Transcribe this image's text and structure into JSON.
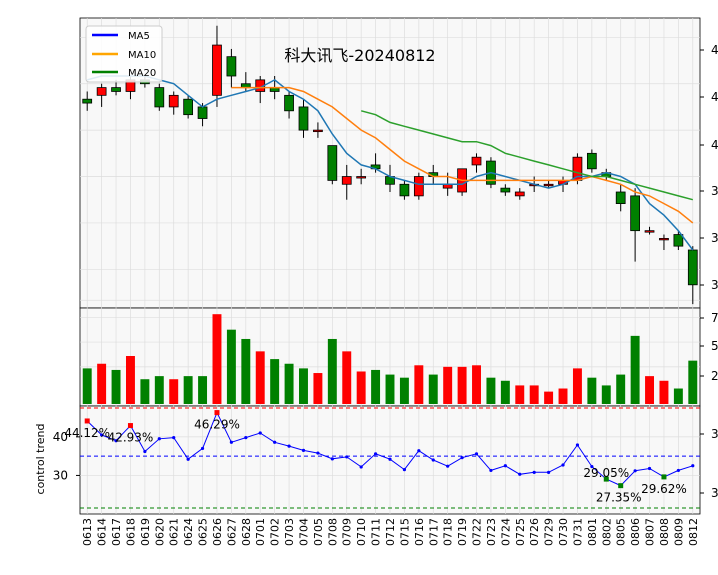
{
  "chart_data": [
    {
      "type": "candlestick",
      "title": "科大讯飞-20240812",
      "legend": {
        "placement": "top-left",
        "entries": [
          "MA5",
          "MA10",
          "MA20"
        ]
      },
      "series_colors": {
        "MA5": "#1f77b4",
        "MA10": "#ff7f0e",
        "MA20": "#2ca02c"
      },
      "legend_colors": {
        "MA5": "#0000ff",
        "MA10": "#ffa500",
        "MA20": "#008000"
      },
      "candle_colors": {
        "up": "#ff0000",
        "down": "#008000"
      },
      "dates": [
        "0613",
        "0614",
        "0617",
        "0618",
        "0619",
        "0620",
        "0621",
        "0624",
        "0625",
        "0626",
        "0627",
        "0628",
        "0701",
        "0702",
        "0703",
        "0704",
        "0705",
        "0708",
        "0709",
        "0710",
        "0711",
        "0712",
        "0715",
        "0716",
        "0717",
        "0718",
        "0719",
        "0722",
        "0723",
        "0724",
        "0725",
        "0726",
        "0729",
        "0730",
        "0731",
        "0801",
        "0802",
        "0805",
        "0806",
        "0807",
        "0808",
        "0809",
        "0812"
      ],
      "right_axis_tick_labels": [
        "4",
        "4",
        "4",
        "3",
        "3",
        "3"
      ],
      "ohlc": [
        [
          39.8,
          40.0,
          39.5,
          39.7
        ],
        [
          39.9,
          40.2,
          39.6,
          40.1
        ],
        [
          40.1,
          40.3,
          39.9,
          40.0
        ],
        [
          40.0,
          40.4,
          39.8,
          40.3
        ],
        [
          40.3,
          40.4,
          40.1,
          40.2
        ],
        [
          40.1,
          40.2,
          39.5,
          39.6
        ],
        [
          39.6,
          40.0,
          39.4,
          39.9
        ],
        [
          39.8,
          39.9,
          39.3,
          39.4
        ],
        [
          39.6,
          39.7,
          39.1,
          39.3
        ],
        [
          39.9,
          41.7,
          39.6,
          41.2
        ],
        [
          40.9,
          41.1,
          40.1,
          40.4
        ],
        [
          40.2,
          40.5,
          40.0,
          40.1
        ],
        [
          40.0,
          40.4,
          39.7,
          40.3
        ],
        [
          40.1,
          40.4,
          39.8,
          40.0
        ],
        [
          39.9,
          40.0,
          39.3,
          39.5
        ],
        [
          39.6,
          39.8,
          38.8,
          39.0
        ],
        [
          39.0,
          39.2,
          38.8,
          39.0
        ],
        [
          38.6,
          38.6,
          37.6,
          37.7
        ],
        [
          37.6,
          38.1,
          37.2,
          37.8
        ],
        [
          37.8,
          38.0,
          37.6,
          37.8
        ],
        [
          38.1,
          38.4,
          37.9,
          38.0
        ],
        [
          37.8,
          38.1,
          37.4,
          37.6
        ],
        [
          37.6,
          37.7,
          37.2,
          37.3
        ],
        [
          37.3,
          37.9,
          37.2,
          37.8
        ],
        [
          37.9,
          38.1,
          37.6,
          37.8
        ],
        [
          37.5,
          37.9,
          37.3,
          37.6
        ],
        [
          37.4,
          38.0,
          37.3,
          38.0
        ],
        [
          38.1,
          38.4,
          37.9,
          38.3
        ],
        [
          38.2,
          38.3,
          37.5,
          37.6
        ],
        [
          37.5,
          37.6,
          37.3,
          37.4
        ],
        [
          37.3,
          37.5,
          37.2,
          37.4
        ],
        [
          37.6,
          37.8,
          37.4,
          37.6
        ],
        [
          37.6,
          37.7,
          37.5,
          37.6
        ],
        [
          37.6,
          37.8,
          37.4,
          37.7
        ],
        [
          37.7,
          38.4,
          37.6,
          38.3
        ],
        [
          38.4,
          38.5,
          37.9,
          38.0
        ],
        [
          37.9,
          38.0,
          37.7,
          37.8
        ],
        [
          37.4,
          37.6,
          36.9,
          37.1
        ],
        [
          37.3,
          37.5,
          35.6,
          36.4
        ],
        [
          36.4,
          36.5,
          36.3,
          36.4
        ],
        [
          36.2,
          36.3,
          35.9,
          36.2
        ],
        [
          36.3,
          36.4,
          35.9,
          36.0
        ],
        [
          35.9,
          36.0,
          34.5,
          35.0
        ]
      ],
      "ma5": [
        40.3,
        40.4,
        40.4,
        40.4,
        40.4,
        40.3,
        40.2,
        39.9,
        39.6,
        39.8,
        39.9,
        40.0,
        40.1,
        40.3,
        40.0,
        39.8,
        39.5,
        38.9,
        38.4,
        38.1,
        38.0,
        37.8,
        37.7,
        37.6,
        37.6,
        37.6,
        37.6,
        37.8,
        37.9,
        37.8,
        37.7,
        37.6,
        37.5,
        37.6,
        37.8,
        37.8,
        37.9,
        37.8,
        37.6,
        37.1,
        36.8,
        36.4,
        35.9
      ],
      "ma10": [
        null,
        null,
        null,
        null,
        null,
        null,
        null,
        null,
        null,
        null,
        40.1,
        40.1,
        40.1,
        40.1,
        40.1,
        40.0,
        39.8,
        39.6,
        39.3,
        39.0,
        38.8,
        38.5,
        38.2,
        38.0,
        37.8,
        37.8,
        37.7,
        37.7,
        37.7,
        37.7,
        37.7,
        37.7,
        37.7,
        37.7,
        37.7,
        37.8,
        37.7,
        37.6,
        37.4,
        37.3,
        37.1,
        36.9,
        36.6
      ],
      "ma20": [
        null,
        null,
        null,
        null,
        null,
        null,
        null,
        null,
        null,
        null,
        null,
        null,
        null,
        null,
        null,
        null,
        null,
        null,
        null,
        39.5,
        39.4,
        39.2,
        39.1,
        39.0,
        38.9,
        38.8,
        38.7,
        38.7,
        38.6,
        38.4,
        38.3,
        38.2,
        38.1,
        38.0,
        37.9,
        37.8,
        37.8,
        37.7,
        37.6,
        37.5,
        37.4,
        37.3,
        37.2
      ]
    },
    {
      "type": "bar",
      "right_axis_tick_labels": [
        "7",
        "5",
        "2"
      ],
      "volume": [
        23,
        26,
        22,
        31,
        16,
        18,
        16,
        18,
        18,
        58,
        48,
        42,
        34,
        29,
        26,
        23,
        20,
        42,
        34,
        21,
        22,
        19,
        17,
        25,
        19,
        24,
        24,
        25,
        17,
        15,
        12,
        12,
        8,
        10,
        23,
        17,
        12,
        19,
        44,
        18,
        15,
        10,
        28
      ]
    },
    {
      "type": "line",
      "ylabel": "control trend",
      "left_axis_ticks": [
        40,
        30
      ],
      "right_axis_tick_labels": [
        "3",
        "3"
      ],
      "ref_lines": {
        "top": 44.5,
        "mid": 35,
        "bottom": 23
      },
      "values": [
        44.12,
        40.5,
        39.0,
        42.93,
        36.2,
        39.5,
        39.8,
        34.2,
        37.0,
        46.29,
        38.6,
        39.8,
        41.0,
        38.6,
        37.6,
        36.5,
        35.8,
        34.3,
        34.8,
        32.2,
        35.6,
        34.2,
        31.5,
        36.4,
        34.0,
        32.4,
        34.6,
        35.6,
        31.3,
        32.5,
        30.3,
        30.8,
        30.8,
        32.7,
        37.9,
        32.3,
        29.05,
        27.35,
        31.2,
        31.8,
        29.62,
        31.3,
        32.5
      ],
      "annotations": [
        {
          "index": 0,
          "text": "44.12%"
        },
        {
          "index": 3,
          "text": "42.93%"
        },
        {
          "index": 9,
          "text": "46.29%"
        },
        {
          "index": 36,
          "text": "29.05%"
        },
        {
          "index": 37,
          "text": "27.35%"
        },
        {
          "index": 40,
          "text": "29.62%"
        }
      ]
    }
  ]
}
